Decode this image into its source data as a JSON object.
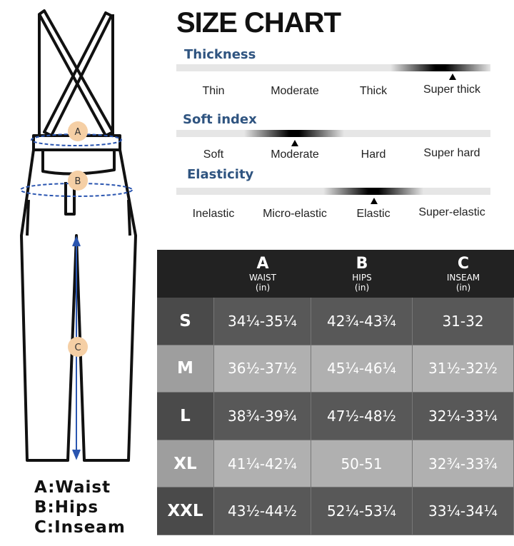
{
  "title": "SIZE CHART",
  "legend": [
    "A:Waist",
    "B:Hips",
    "C:Inseam"
  ],
  "figure_markers": [
    "A",
    "B",
    "C"
  ],
  "scales": [
    {
      "name": "Thickness",
      "levels": [
        "Thin",
        "Moderate",
        "Thick",
        "Super thick"
      ],
      "selected_index": 3
    },
    {
      "name": "Soft index",
      "levels": [
        "Soft",
        "Moderate",
        "Hard",
        "Super hard"
      ],
      "selected_index": 1
    },
    {
      "name": "Elasticity",
      "levels": [
        "Inelastic",
        "Micro-elastic",
        "Elastic",
        "Super-elastic"
      ],
      "selected_index": 2
    }
  ],
  "table": {
    "headers": [
      {
        "letter": "A",
        "name": "WAIST",
        "unit": "(in)"
      },
      {
        "letter": "B",
        "name": "HIPS",
        "unit": "(in)"
      },
      {
        "letter": "C",
        "name": "INSEAM",
        "unit": "(in)"
      }
    ],
    "rows": [
      {
        "size": "S",
        "values": [
          "34¼-35¼",
          "42¾-43¾",
          "31-32"
        ]
      },
      {
        "size": "M",
        "values": [
          "36½-37½",
          "45¼-46¼",
          "31½-32½"
        ]
      },
      {
        "size": "L",
        "values": [
          "38¾-39¾",
          "47½-48½",
          "32¼-33¼"
        ]
      },
      {
        "size": "XL",
        "values": [
          "41¼-42¼",
          "50-51",
          "32¾-33¾"
        ]
      },
      {
        "size": "XXL",
        "values": [
          "43½-44½",
          "52¼-53¼",
          "33¼-34¼"
        ]
      }
    ]
  },
  "colors": {
    "dark_row": "#585858",
    "light_row": "#b0b0b0",
    "header": "#222222",
    "section_title": "#2f5480",
    "measure_line": "#2a55b0",
    "marker_fill": "#f5cfa5"
  }
}
